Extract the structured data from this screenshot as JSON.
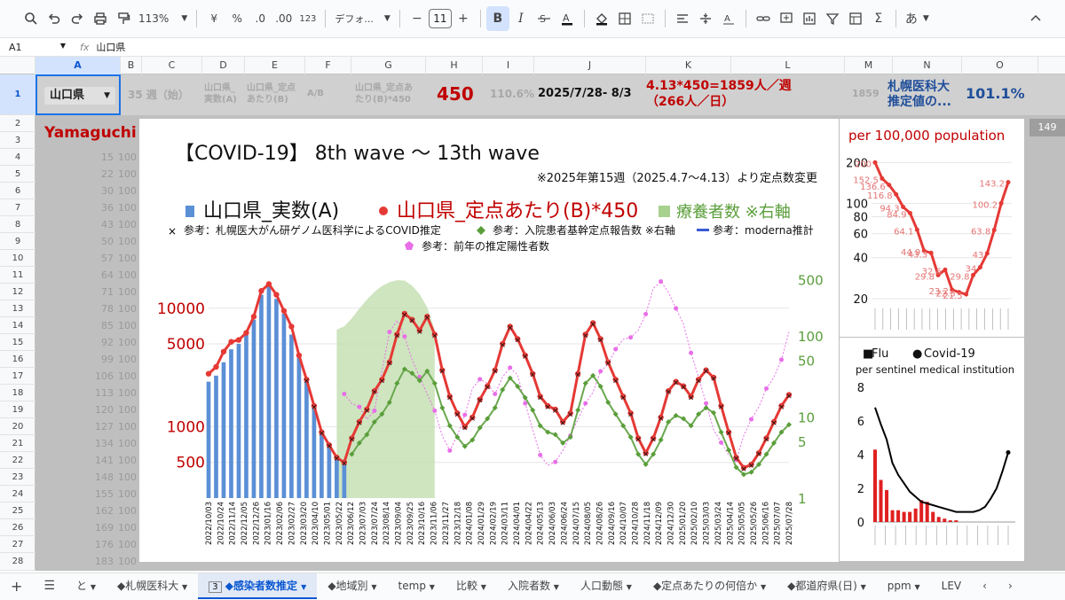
{
  "toolbar": {
    "zoom": "113%",
    "currency": "¥",
    "percent": "%",
    "dec_decrease": ".0",
    "dec_increase": ".00",
    "number_format": "123",
    "font": "デフォ...",
    "font_size": "11",
    "minus": "−",
    "plus": "+",
    "bold": "B",
    "italic": "I",
    "sigma": "Σ",
    "ime": "あ"
  },
  "formula": {
    "cell_ref": "A1",
    "fx": "fx",
    "value": "山口県"
  },
  "columns": [
    "A",
    "B",
    "C",
    "D",
    "E",
    "F",
    "G",
    "H",
    "I",
    "J",
    "K",
    "L",
    "M",
    "N",
    "O"
  ],
  "rows": [
    "1",
    "2",
    "3",
    "4",
    "5",
    "6",
    "7",
    "8",
    "9",
    "10",
    "11",
    "12",
    "13",
    "14",
    "15",
    "16",
    "17",
    "18",
    "19",
    "20",
    "21",
    "22",
    "23",
    "24",
    "25",
    "26",
    "27",
    "28"
  ],
  "row1": {
    "prefecture": "山口県",
    "week": "35 週（始）",
    "d_label": "山口県_\n実数(A)",
    "e_label": "山口県_定点\nあたり(B)",
    "f_label": "A/B",
    "g_label": "山口県_定点あ\nたり(B)*450",
    "h_value": "450",
    "i_value": "110.6%",
    "j_value": "2025/7/28- 8/3",
    "k_value": "4.13*450=1859人／週\n（266人／日）",
    "m_value": "1859",
    "n_value": "札幌医科大\n推定値の...",
    "o_value": "101.1%"
  },
  "yamaguchi": "Yamaguchi",
  "left_values": [
    "15",
    "22",
    "30",
    "36",
    "43",
    "50",
    "57",
    "64",
    "71",
    "78",
    "85",
    "92",
    "99",
    "106",
    "113",
    "120",
    "127",
    "134",
    "141",
    "148",
    "155",
    "162",
    "169",
    "176",
    "183"
  ],
  "left_values_b": "100",
  "scroll_badge": "149",
  "sheet_tabs": [
    "◆札幌医科大",
    "3",
    "◆感染者数推定",
    "◆地域別",
    "temp",
    "比較",
    "入院者数",
    "人口動態",
    "◆定点あたりの何倍か",
    "◆都道府県(日)",
    "ppm",
    "LEV"
  ],
  "sheet_tab_partial": "と",
  "main_chart": {
    "title": "【COVID-19】 8th wave 〜 13th wave",
    "note": "※2025年第15週（2025.4.7〜4.13）より定点数変更",
    "legend1": [
      {
        "label": "山口県_実数(A)",
        "color": "#5b8fd6"
      },
      {
        "label": "山口県_定点あたり(B)*450",
        "color": "#e53935"
      },
      {
        "label": "療養者数 ※右軸",
        "color": "#a9d18e"
      }
    ],
    "legend2": [
      {
        "label": "参考：札幌医大がん研ゲノム医科学によるCOVID推定",
        "color": "#000000"
      },
      {
        "label": "参考：入院患者基幹定点報告数 ※右軸",
        "color": "#5a9e3a"
      },
      {
        "label": "参考：moderna推計",
        "color": "#3a5bd6"
      }
    ],
    "legend3": {
      "label": "参考：前年の推定陽性者数",
      "color": "#e86ee8"
    },
    "left_ticks": [
      "10000",
      "5000",
      "1000",
      "500"
    ],
    "right_ticks": [
      "500",
      "100",
      "50",
      "10",
      "5",
      "1"
    ],
    "x_labels": [
      "2022/10/03",
      "2022/10/24",
      "2022/11/14",
      "2022/12/05",
      "2022/12/26",
      "2023/01/16",
      "2023/02/06",
      "2023/02/27",
      "2023/03/20",
      "2023/04/10",
      "2023/05/01",
      "2023/05/22",
      "2023/06/12",
      "2023/07/03",
      "2023/07/24",
      "2023/08/14",
      "2023/09/04",
      "2023/09/25",
      "2023/10/16",
      "2023/11/06",
      "2023/11/27",
      "2023/12/18",
      "2024/01/08",
      "2024/01/29",
      "2024/02/19",
      "2024/03/11",
      "2024/04/01",
      "2024/04/22",
      "2024/05/13",
      "2024/06/03",
      "2024/06/24",
      "2024/07/15",
      "2024/08/05",
      "2024/08/26",
      "2024/09/16",
      "2024/10/07",
      "2024/10/28",
      "2024/11/18",
      "2024/12/09",
      "2024/12/30",
      "2025/01/20",
      "2025/02/10",
      "2025/03/03",
      "2025/03/24",
      "2025/04/14",
      "2025/05/05",
      "2025/05/26",
      "2025/06/16",
      "2025/07/07",
      "2025/07/28"
    ]
  },
  "chart_data": [
    {
      "type": "line",
      "title": "【COVID-19】 8th wave 〜 13th wave",
      "series": [
        {
          "name": "山口県_定点あたり(B)*450",
          "values": [
            2800,
            3200,
            4300,
            5200,
            5400,
            6200,
            8500,
            14000,
            16000,
            13000,
            9500,
            7000,
            4000,
            2500,
            1500,
            900,
            700,
            550,
            500,
            800,
            1100,
            1400,
            2000,
            2500,
            3500,
            6000,
            9000,
            8000,
            6500,
            8500,
            6000,
            3000,
            1800,
            1300,
            1000,
            1200,
            1700,
            2200,
            3000,
            5000,
            7000,
            5500,
            4000,
            2800,
            1800,
            1500,
            1400,
            1100,
            1300,
            2800,
            6000,
            7500,
            5500,
            3500,
            2500,
            1800,
            1300,
            800,
            600,
            800,
            1200,
            2000,
            2400,
            2200,
            1800,
            2500,
            3000,
            2600,
            1500,
            900,
            550,
            450,
            480,
            600,
            800,
            1100,
            1500,
            1859
          ]
        },
        {
          "name": "山口県_実数(A)",
          "values": [
            2400,
            2700,
            3500,
            4500,
            5000,
            6000,
            8000,
            13000,
            16000,
            12000,
            9000,
            6000,
            4000,
            2500,
            1500,
            900,
            700,
            550,
            500
          ]
        }
      ],
      "left_ticks": [
        500,
        1000,
        5000,
        10000
      ],
      "right_ticks": [
        1,
        5,
        10,
        50,
        100,
        500
      ]
    },
    {
      "type": "line",
      "title": "per 100,000 population",
      "y_ticks": [
        20,
        40,
        60,
        80,
        100,
        200
      ],
      "values": [
        200,
        152.5,
        136.6,
        116.8,
        94.3,
        84.9,
        64.1,
        44.9,
        43.3,
        29.8,
        32.6,
        23.2,
        22.3,
        21.5,
        29.8,
        34.0,
        43.0,
        63.8,
        100.2,
        143.2
      ]
    },
    {
      "type": "bar",
      "title": "per sentinel medical institution",
      "legend": [
        "Flu",
        "Covid-19"
      ],
      "y_ticks": [
        0,
        2,
        4,
        6,
        8
      ],
      "flu": [
        4.3,
        2.5,
        1.9,
        0.7,
        0.7,
        0.6,
        0.6,
        0.8,
        1.3,
        1.2,
        0.6,
        0.3,
        0.2,
        0.1,
        0.1,
        0,
        0,
        0,
        0,
        0,
        0,
        0,
        0,
        0
      ],
      "covid": [
        6.8,
        5.8,
        4.9,
        3.5,
        2.8,
        2.3,
        1.8,
        1.5,
        1.2,
        1.1,
        1.0,
        0.9,
        0.8,
        0.7,
        0.6,
        0.6,
        0.6,
        0.6,
        0.7,
        0.9,
        1.4,
        2.0,
        3.0,
        4.13
      ]
    }
  ]
}
